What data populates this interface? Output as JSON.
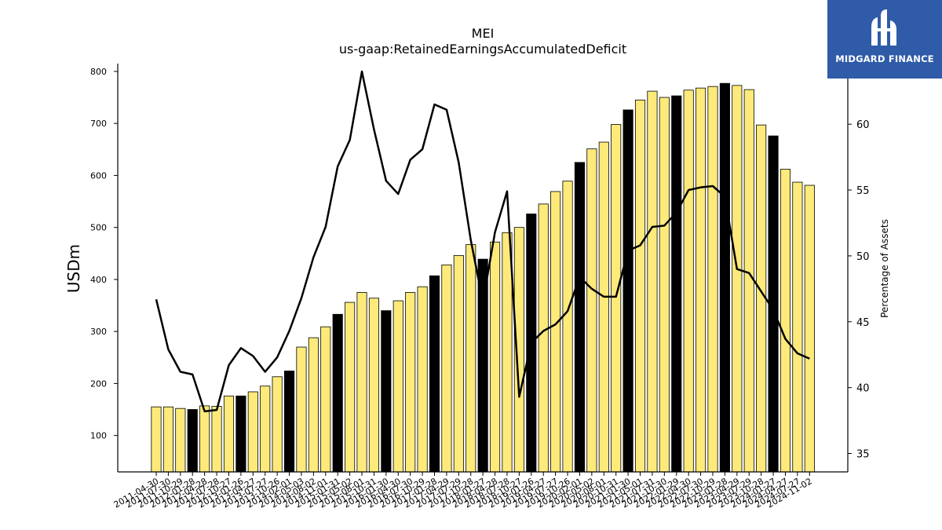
{
  "chart_data": {
    "type": "bar",
    "title": "MEI",
    "subtitle": "us-gaap:RetainedEarningsAccumulatedDeficit",
    "ylabel": "USDm",
    "ylabel_right": "Percentage of Assets",
    "ylim": [
      30,
      815
    ],
    "ylim_right": [
      33.6,
      64.6
    ],
    "yticks": [
      100,
      200,
      300,
      400,
      500,
      600,
      700,
      800
    ],
    "yticks_right": [
      35,
      40,
      45,
      50,
      55,
      60
    ],
    "grid": false,
    "categories": [
      "2011-04-30",
      "2011-07-30",
      "2011-10-29",
      "2012-01-28",
      "2012-04-28",
      "2012-07-28",
      "2012-10-27",
      "2013-01-26",
      "2013-04-27",
      "2013-07-27",
      "2013-10-26",
      "2014-02-01",
      "2014-05-03",
      "2014-08-02",
      "2014-11-01",
      "2015-01-31",
      "2015-05-02",
      "2015-08-01",
      "2015-10-31",
      "2016-01-30",
      "2016-04-30",
      "2016-07-30",
      "2016-10-29",
      "2017-01-28",
      "2017-04-29",
      "2017-07-29",
      "2017-10-28",
      "2018-01-27",
      "2018-04-28",
      "2018-07-28",
      "2018-10-27",
      "2019-01-26",
      "2019-04-27",
      "2019-07-27",
      "2019-10-26",
      "2020-02-01",
      "2020-05-02",
      "2020-08-01",
      "2020-10-31",
      "2021-01-30",
      "2021-05-01",
      "2021-07-31",
      "2021-10-30",
      "2022-01-29",
      "2022-04-30",
      "2022-07-30",
      "2022-10-29",
      "2023-01-28",
      "2023-04-29",
      "2023-07-29",
      "2023-10-28",
      "2024-01-27",
      "2024-04-27",
      "2024-07-27",
      "2024-11-02"
    ],
    "x_tick_labels": [
      "2011-04-30",
      "2011-07-30",
      "2011-10-29",
      "2012-01-28",
      "2012-04-28",
      "2012-07-28",
      "2012-10-27",
      "2013-01-26",
      "2013-04-27",
      "2013-07-27",
      "2013-10-26",
      "2014-02-01",
      "2014-05-03",
      "2014-08-02",
      "2014-11-01",
      "2015-01-31",
      "2015-05-02",
      "2015-08-01",
      "2015-10-31",
      "2016-01-30",
      "2016-04-30",
      "2016-07-30",
      "2016-10-29",
      "2017-01-28",
      "2017-04-29",
      "2017-07-29",
      "2017-10-28",
      "2018-01-27",
      "2018-04-28",
      "2018-07-28",
      "2018-10-27",
      "2019-01-26",
      "2019-04-27",
      "2019-07-27",
      "2019-10-26",
      "2020-02-01",
      "2020-05-02",
      "2020-08-01",
      "2020-10-31",
      "2021-01-30",
      "2021-05-01",
      "2021-07-31",
      "2021-10-30",
      "2022-01-29",
      "2022-04-30",
      "2022-07-30",
      "2022-10-29",
      "2023-01-28",
      "2023-04-29",
      "2023-07-29",
      "2023-10-28",
      "2024-01-27",
      "2024-04-27",
      "2024-07-27",
      "2024-11-02"
    ],
    "series": [
      {
        "type": "bar",
        "axis": "left",
        "values": [
          155,
          155,
          152,
          150,
          157,
          156,
          176,
          176,
          184,
          195,
          213,
          224,
          270,
          288,
          309,
          333,
          356,
          375,
          364,
          340,
          359,
          375,
          386,
          407,
          428,
          446,
          467,
          439,
          472,
          490,
          500,
          526,
          545,
          569,
          589,
          625,
          651,
          664,
          698,
          726,
          745,
          762,
          750,
          753,
          764,
          768,
          771,
          777,
          773,
          765,
          697,
          676,
          612,
          587,
          581
        ],
        "annual_flags": [
          false,
          false,
          false,
          true,
          false,
          false,
          false,
          true,
          false,
          false,
          false,
          true,
          false,
          false,
          false,
          true,
          false,
          false,
          false,
          true,
          false,
          false,
          false,
          true,
          false,
          false,
          false,
          true,
          false,
          false,
          false,
          true,
          false,
          false,
          false,
          true,
          false,
          false,
          false,
          true,
          false,
          false,
          false,
          true,
          false,
          false,
          false,
          true,
          false,
          false,
          false,
          true,
          false,
          false,
          false
        ],
        "color": "#fdea7a",
        "annual_color": "#000000"
      },
      {
        "type": "line",
        "axis": "right",
        "values": [
          46.7,
          42.9,
          41.2,
          41.0,
          38.2,
          38.3,
          41.7,
          43.0,
          42.4,
          41.2,
          42.3,
          44.3,
          46.8,
          49.9,
          52.2,
          56.8,
          58.8,
          64.0,
          59.6,
          55.7,
          54.7,
          57.3,
          58.1,
          61.5,
          61.1,
          57.1,
          51.2,
          46.5,
          51.8,
          54.9,
          39.3,
          43.4,
          44.3,
          44.8,
          45.8,
          48.4,
          47.5,
          46.9,
          46.9,
          50.4,
          50.8,
          52.2,
          52.3,
          53.3,
          55.0,
          55.2,
          55.3,
          54.5,
          49.0,
          48.7,
          47.3,
          45.9,
          43.7,
          42.6,
          42.2
        ],
        "color": "#000000"
      }
    ]
  },
  "logo": {
    "text": "MIDGARD FINANCE",
    "color": "#2f5ba8"
  }
}
